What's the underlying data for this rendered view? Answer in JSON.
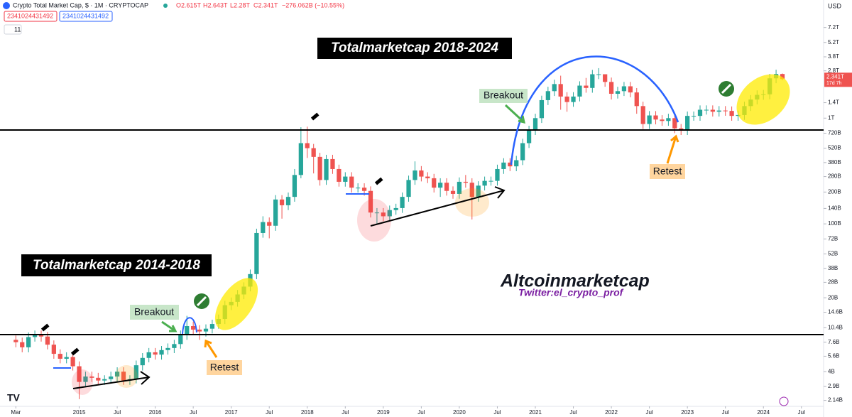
{
  "header": {
    "title": "Crypto Total Market Cap, $ · 1M · CRYPTOCAP",
    "open": "O2.615T",
    "high": "H2.643T",
    "low": "L2.28T",
    "close": "C2.341T",
    "change": "−276.062B (−10.55%)",
    "input_1": "2341024431492",
    "input_2": "2341024431492",
    "badge": "11"
  },
  "chart_data": {
    "type": "candlestick",
    "currency": "USD",
    "log_scale": true,
    "grid": false,
    "up_color": "#26a69a",
    "down_color": "#ef5350",
    "price_label": "2.341T",
    "countdown": "17d 7h",
    "annotations": [
      "Totalmarketcap 2018-2024",
      "Totalmarketcap 2014-2018",
      "Breakout",
      "Breakout",
      "Retest",
      "Retest",
      "Altcoinmarketcap",
      "Twitter:el_crypto_prof"
    ],
    "xlim": [
      -2.5,
      127.5
    ],
    "xticks": [
      {
        "value": 0,
        "label": "Mar"
      },
      {
        "value": 10,
        "label": "2015"
      },
      {
        "value": 16,
        "label": "Jul"
      },
      {
        "value": 22,
        "label": "2016"
      },
      {
        "value": 28,
        "label": "Jul"
      },
      {
        "value": 34,
        "label": "2017"
      },
      {
        "value": 40,
        "label": "Jul"
      },
      {
        "value": 46,
        "label": "2018"
      },
      {
        "value": 52,
        "label": "Jul"
      },
      {
        "value": 58,
        "label": "2019"
      },
      {
        "value": 64,
        "label": "Jul"
      },
      {
        "value": 70,
        "label": "2020"
      },
      {
        "value": 76,
        "label": "Jul"
      },
      {
        "value": 82,
        "label": "2021"
      },
      {
        "value": 88,
        "label": "Jul"
      },
      {
        "value": 94,
        "label": "2022"
      },
      {
        "value": 100,
        "label": "Jul"
      },
      {
        "value": 106,
        "label": "2023"
      },
      {
        "value": 112,
        "label": "Jul"
      },
      {
        "value": 118,
        "label": "2024"
      },
      {
        "value": 124,
        "label": "Jul"
      }
    ],
    "ylim": [
      1880000000.0,
      13100000000000.0
    ],
    "yticks": [
      {
        "value": 7200000000000.0,
        "label": "7.2T"
      },
      {
        "value": 5200000000000.0,
        "label": "5.2T"
      },
      {
        "value": 3800000000000.0,
        "label": "3.8T"
      },
      {
        "value": 2800000000000.0,
        "label": "2.8T"
      },
      {
        "value": 1400000000000.0,
        "label": "1.4T"
      },
      {
        "value": 1000000000000.0,
        "label": "1T"
      },
      {
        "value": 720000000000.0,
        "label": "720B"
      },
      {
        "value": 520000000000.0,
        "label": "520B"
      },
      {
        "value": 380000000000.0,
        "label": "380B"
      },
      {
        "value": 280000000000.0,
        "label": "280B"
      },
      {
        "value": 200000000000.0,
        "label": "200B"
      },
      {
        "value": 140000000000.0,
        "label": "140B"
      },
      {
        "value": 100000000000.0,
        "label": "100B"
      },
      {
        "value": 72000000000.0,
        "label": "72B"
      },
      {
        "value": 52000000000.0,
        "label": "52B"
      },
      {
        "value": 38000000000.0,
        "label": "38B"
      },
      {
        "value": 28000000000.0,
        "label": "28B"
      },
      {
        "value": 20000000000.0,
        "label": "20B"
      },
      {
        "value": 14600000000.0,
        "label": "14.6B"
      },
      {
        "value": 10400000000.0,
        "label": "10.4B"
      },
      {
        "value": 7600000000.0,
        "label": "7.6B"
      },
      {
        "value": 5600000000.0,
        "label": "5.6B"
      },
      {
        "value": 4000000000.0,
        "label": "4B"
      },
      {
        "value": 2900000000.0,
        "label": "2.9B"
      },
      {
        "value": 2140000000.0,
        "label": "2.14B"
      }
    ],
    "x": [
      0,
      1,
      2,
      3,
      4,
      5,
      6,
      7,
      8,
      9,
      10,
      11,
      12,
      13,
      14,
      15,
      16,
      17,
      18,
      19,
      20,
      21,
      22,
      23,
      24,
      25,
      26,
      27,
      28,
      29,
      30,
      31,
      32,
      33,
      34,
      35,
      36,
      37,
      38,
      39,
      40,
      41,
      42,
      43,
      44,
      45,
      46,
      47,
      48,
      49,
      50,
      51,
      52,
      53,
      54,
      55,
      56,
      57,
      58,
      59,
      60,
      61,
      62,
      63,
      64,
      65,
      66,
      67,
      68,
      69,
      70,
      71,
      72,
      73,
      74,
      75,
      76,
      77,
      78,
      79,
      80,
      81,
      82,
      83,
      84,
      85,
      86,
      87,
      88,
      89,
      90,
      91,
      92,
      93,
      94,
      95,
      96,
      97,
      98,
      99,
      100,
      101,
      102,
      103,
      104,
      105,
      106,
      107,
      108,
      109,
      110,
      111,
      112,
      113,
      114,
      115,
      116,
      117,
      118,
      119,
      120,
      121
    ],
    "open": [
      8000000000.0,
      7600000000.0,
      6800000000.0,
      8500000000.0,
      8900000000.0,
      8600000000.0,
      7200000000.0,
      5900000000.0,
      5300000000.0,
      5500000000.0,
      4500000000.0,
      3200000000.0,
      3600000000.0,
      3500000000.0,
      3300000000.0,
      3400000000.0,
      3600000000.0,
      4000000000.0,
      3300000000.0,
      3400000000.0,
      4600000000.0,
      5400000000.0,
      6100000000.0,
      5800000000.0,
      6400000000.0,
      6700000000.0,
      7300000000.0,
      8900000000.0,
      10800000000.0,
      10000000000.0,
      9600000000.0,
      10200000000.0,
      11300000000.0,
      12600000000.0,
      17000000000.0,
      18300000000.0,
      21500000000.0,
      25500000000.0,
      33500000000.0,
      82000000000.0,
      104000000000.0,
      96000000000.0,
      170000000000.0,
      150000000000.0,
      180000000000.0,
      290000000000.0,
      580000000000.0,
      520000000000.0,
      430000000000.0,
      260000000000.0,
      410000000000.0,
      330000000000.0,
      250000000000.0,
      280000000000.0,
      220000000000.0,
      220000000000.0,
      205000000000.0,
      128000000000.0,
      128000000000.0,
      118000000000.0,
      135000000000.0,
      141000000000.0,
      180000000000.0,
      260000000000.0,
      320000000000.0,
      280000000000.0,
      270000000000.0,
      220000000000.0,
      245000000000.0,
      205000000000.0,
      192000000000.0,
      250000000000.0,
      245000000000.0,
      180000000000.0,
      230000000000.0,
      255000000000.0,
      255000000000.0,
      330000000000.0,
      380000000000.0,
      350000000000.0,
      400000000000.0,
      580000000000.0,
      770000000000.0,
      1000000000000.0,
      1480000000000.0,
      1800000000000.0,
      2100000000000.0,
      1600000000000.0,
      1420000000000.0,
      1600000000000.0,
      2030000000000.0,
      1930000000000.0,
      2600000000000.0,
      2600000000000.0,
      2200000000000.0,
      1700000000000.0,
      1800000000000.0,
      2000000000000.0,
      1750000000000.0,
      1300000000000.0,
      880000000000.0,
      1060000000000.0,
      970000000000.0,
      940000000000.0,
      1000000000000.0,
      800000000000.0,
      770000000000.0,
      1050000000000.0,
      1050000000000.0,
      1200000000000.0,
      1200000000000.0,
      1150000000000.0,
      1180000000000.0,
      1170000000000.0,
      1050000000000.0,
      1070000000000.0,
      1300000000000.0,
      1500000000000.0,
      1660000000000.0,
      1680000000000.0,
      2380000000000.0,
      2615000000000.0
    ],
    "high": [
      8800000000.0,
      8400000000.0,
      9400000000.0,
      9800000000.0,
      9800000000.0,
      9500000000.0,
      7900000000.0,
      6500000000.0,
      6100000000.0,
      6100000000.0,
      5000000000.0,
      4000000000.0,
      4000000000.0,
      3900000000.0,
      3700000000.0,
      4000000000.0,
      4400000000.0,
      4400000000.0,
      3700000000.0,
      5100000000.0,
      6000000000.0,
      6700000000.0,
      6700000000.0,
      7000000000.0,
      7400000000.0,
      8000000000.0,
      9800000000.0,
      13500000000.0,
      11900000000.0,
      11000000000.0,
      11200000000.0,
      12400000000.0,
      13900000000.0,
      18700000000.0,
      20100000000.0,
      23700000000.0,
      28000000000.0,
      37000000000.0,
      90000000000.0,
      118000000000.0,
      115000000000.0,
      187000000000.0,
      187000000000.0,
      198000000000.0,
      330000000000.0,
      820000000000.0,
      830000000000.0,
      570000000000.0,
      470000000000.0,
      450000000000.0,
      450000000000.0,
      363000000000.0,
      308000000000.0,
      308000000000.0,
      242000000000.0,
      242000000000.0,
      226000000000.0,
      141000000000.0,
      141000000000.0,
      149000000000.0,
      155000000000.0,
      198000000000.0,
      286000000000.0,
      390000000000.0,
      352000000000.0,
      308000000000.0,
      297000000000.0,
      270000000000.0,
      270000000000.0,
      226000000000.0,
      275000000000.0,
      290000000000.0,
      270000000000.0,
      253000000000.0,
      280000000000.0,
      280000000000.0,
      363000000000.0,
      418000000000.0,
      418000000000.0,
      440000000000.0,
      638000000000.0,
      847000000000.0,
      1100000000000.0,
      1630000000000.0,
      1980000000000.0,
      2310000000000.0,
      2520000000000.0,
      1760000000000.0,
      1760000000000.0,
      2230000000000.0,
      2400000000000.0,
      2860000000000.0,
      2970000000000.0,
      2600000000000.0,
      2420000000000.0,
      1980000000000.0,
      2200000000000.0,
      2200000000000.0,
      1925000000000.0,
      1430000000000.0,
      1166000000000.0,
      1166000000000.0,
      1067000000000.0,
      1100000000000.0,
      1100000000000.0,
      880000000000.0,
      1155000000000.0,
      1155000000000.0,
      1320000000000.0,
      1320000000000.0,
      1320000000000.0,
      1300000000000.0,
      1300000000000.0,
      1290000000000.0,
      1180000000000.0,
      1430000000000.0,
      1650000000000.0,
      1830000000000.0,
      1850000000000.0,
      2620000000000.0,
      2870000000000.0,
      2643000000000.0
    ],
    "low": [
      6800000000.0,
      6100000000.0,
      6100000000.0,
      7700000000.0,
      7700000000.0,
      6500000000.0,
      5300000000.0,
      4800000000.0,
      4800000000.0,
      4100000000.0,
      2200000000.0,
      2900000000.0,
      3200000000.0,
      3000000000.0,
      3000000000.0,
      3100000000.0,
      3200000000.0,
      3000000000.0,
      3000000000.0,
      3100000000.0,
      4100000000.0,
      4900000000.0,
      5200000000.0,
      5200000000.0,
      5800000000.0,
      6000000000.0,
      6600000000.0,
      8000000000.0,
      9000000000.0,
      8000000000.0,
      8600000000.0,
      9200000000.0,
      10200000000.0,
      11300000000.0,
      15300000000.0,
      16500000000.0,
      19400000000.0,
      23000000000.0,
      30000000000.0,
      74000000000.0,
      73000000000.0,
      86000000000.0,
      112000000000.0,
      135000000000.0,
      162000000000.0,
      270000000000.0,
      420000000000.0,
      300000000000.0,
      230000000000.0,
      234000000000.0,
      297000000000.0,
      225000000000.0,
      225000000000.0,
      198000000000.0,
      198000000000.0,
      185000000000.0,
      115000000000.0,
      100000000000.0,
      106000000000.0,
      106000000000.0,
      122000000000.0,
      127000000000.0,
      162000000000.0,
      234000000000.0,
      252000000000.0,
      243000000000.0,
      198000000000.0,
      180000000000.0,
      185000000000.0,
      173000000000.0,
      173000000000.0,
      220000000000.0,
      110000000000.0,
      162000000000.0,
      207000000000.0,
      230000000000.0,
      230000000000.0,
      297000000000.0,
      315000000000.0,
      315000000000.0,
      360000000000.0,
      522000000000.0,
      693000000000.0,
      900000000000.0,
      1330000000000.0,
      1620000000000.0,
      1200000000000.0,
      1150000000000.0,
      1280000000000.0,
      1440000000000.0,
      1740000000000.0,
      1740000000000.0,
      2340000000000.0,
      1980000000000.0,
      1500000000000.0,
      1530000000000.0,
      1620000000000.0,
      1575000000000.0,
      1100000000000.0,
      790000000000.0,
      790000000000.0,
      873000000000.0,
      846000000000.0,
      846000000000.0,
      720000000000.0,
      693000000000.0,
      693000000000.0,
      945000000000.0,
      945000000000.0,
      1080000000000.0,
      1035000000000.0,
      1035000000000.0,
      1053000000000.0,
      945000000000.0,
      945000000000.0,
      963000000000.0,
      1170000000000.0,
      1350000000000.0,
      1490000000000.0,
      1510000000000.0,
      2140000000000.0,
      2280000000000.0
    ],
    "close": [
      7600000000.0,
      6800000000.0,
      8500000000.0,
      8900000000.0,
      8600000000.0,
      7200000000.0,
      5900000000.0,
      5300000000.0,
      5500000000.0,
      4500000000.0,
      3200000000.0,
      3600000000.0,
      3500000000.0,
      3300000000.0,
      3400000000.0,
      3600000000.0,
      4000000000.0,
      3300000000.0,
      3400000000.0,
      4600000000.0,
      5400000000.0,
      6100000000.0,
      5800000000.0,
      6400000000.0,
      6700000000.0,
      7300000000.0,
      8900000000.0,
      10800000000.0,
      10000000000.0,
      9600000000.0,
      10200000000.0,
      11300000000.0,
      12600000000.0,
      17000000000.0,
      18300000000.0,
      21500000000.0,
      25500000000.0,
      33500000000.0,
      82000000000.0,
      104000000000.0,
      96000000000.0,
      170000000000.0,
      150000000000.0,
      180000000000.0,
      290000000000.0,
      580000000000.0,
      520000000000.0,
      430000000000.0,
      260000000000.0,
      410000000000.0,
      330000000000.0,
      250000000000.0,
      280000000000.0,
      220000000000.0,
      220000000000.0,
      205000000000.0,
      128000000000.0,
      128000000000.0,
      118000000000.0,
      135000000000.0,
      141000000000.0,
      180000000000.0,
      260000000000.0,
      320000000000.0,
      280000000000.0,
      270000000000.0,
      220000000000.0,
      245000000000.0,
      205000000000.0,
      192000000000.0,
      250000000000.0,
      245000000000.0,
      180000000000.0,
      230000000000.0,
      255000000000.0,
      255000000000.0,
      330000000000.0,
      380000000000.0,
      350000000000.0,
      400000000000.0,
      580000000000.0,
      770000000000.0,
      1000000000000.0,
      1480000000000.0,
      1800000000000.0,
      2100000000000.0,
      1600000000000.0,
      1420000000000.0,
      1600000000000.0,
      2030000000000.0,
      1930000000000.0,
      2600000000000.0,
      2600000000000.0,
      2200000000000.0,
      1700000000000.0,
      1800000000000.0,
      2000000000000.0,
      1750000000000.0,
      1300000000000.0,
      880000000000.0,
      1060000000000.0,
      970000000000.0,
      940000000000.0,
      1000000000000.0,
      800000000000.0,
      770000000000.0,
      1050000000000.0,
      1050000000000.0,
      1200000000000.0,
      1200000000000.0,
      1150000000000.0,
      1180000000000.0,
      1170000000000.0,
      1050000000000.0,
      1070000000000.0,
      1300000000000.0,
      1500000000000.0,
      1660000000000.0,
      1680000000000.0,
      2380000000000.0,
      2615000000000.0,
      2341000000000.0
    ]
  }
}
